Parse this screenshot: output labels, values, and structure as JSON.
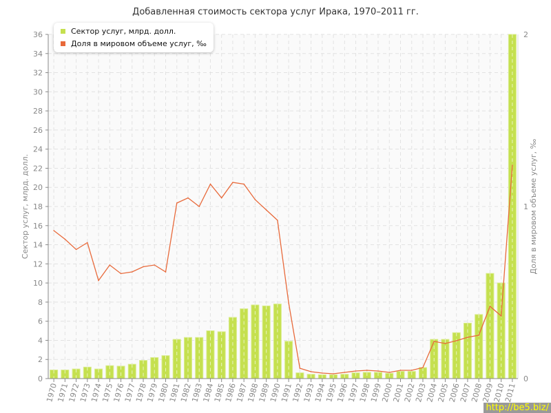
{
  "chart_data": {
    "type": "bar+line",
    "title": "Добавленная стоимость сектора услуг Ирака, 1970–2011 гг.",
    "ylabel": "Сектор услуг, млрд. долл.",
    "y2label": "Доля в мировом объеме услуг, ‰",
    "ylim": [
      0,
      36
    ],
    "y2lim": [
      0,
      2
    ],
    "yticks": [
      0,
      2,
      4,
      6,
      8,
      10,
      12,
      14,
      16,
      18,
      20,
      22,
      24,
      26,
      28,
      30,
      32,
      34,
      36
    ],
    "y2ticks": [
      0,
      1,
      2
    ],
    "grid": true,
    "legend_placement": "top-left",
    "categories": [
      "1970",
      "1971",
      "1972",
      "1973",
      "1974",
      "1975",
      "1976",
      "1977",
      "1978",
      "1979",
      "1980",
      "1981",
      "1982",
      "1983",
      "1984",
      "1985",
      "1986",
      "1987",
      "1988",
      "1989",
      "1990",
      "1991",
      "1992",
      "1993",
      "1994",
      "1995",
      "1996",
      "1997",
      "1998",
      "1999",
      "2000",
      "2001",
      "2002",
      "2003",
      "2004",
      "2005",
      "2006",
      "2007",
      "2008",
      "2009",
      "2010",
      "2011"
    ],
    "series": [
      {
        "name": "Сектор услуг, млрд. долл.",
        "type": "bar",
        "axis": "left",
        "color": "#c5e04f",
        "values": [
          0.9,
          0.9,
          1.0,
          1.2,
          1.0,
          1.35,
          1.3,
          1.5,
          1.9,
          2.2,
          2.4,
          4.1,
          4.3,
          4.3,
          5.0,
          4.9,
          6.4,
          7.3,
          7.7,
          7.6,
          7.8,
          3.9,
          0.6,
          0.45,
          0.4,
          0.4,
          0.45,
          0.6,
          0.65,
          0.65,
          0.55,
          0.75,
          0.75,
          1.15,
          4.1,
          4.1,
          4.8,
          5.8,
          6.7,
          11.0,
          10.0,
          36
        ]
      },
      {
        "name": "Доля в мировом объеме услуг, ‰",
        "type": "line",
        "axis": "right",
        "color": "#e8693a",
        "values": [
          0.86,
          0.81,
          0.75,
          0.79,
          0.57,
          0.66,
          0.61,
          0.62,
          0.65,
          0.66,
          0.62,
          1.02,
          1.05,
          1.0,
          1.13,
          1.05,
          1.14,
          1.13,
          1.04,
          0.98,
          0.92,
          0.44,
          0.06,
          0.04,
          0.032,
          0.028,
          0.036,
          0.044,
          0.048,
          0.044,
          0.036,
          0.048,
          0.048,
          0.064,
          0.216,
          0.204,
          0.22,
          0.24,
          0.252,
          0.42,
          0.364,
          1.24
        ]
      }
    ]
  },
  "watermark": "http://be5.biz/"
}
